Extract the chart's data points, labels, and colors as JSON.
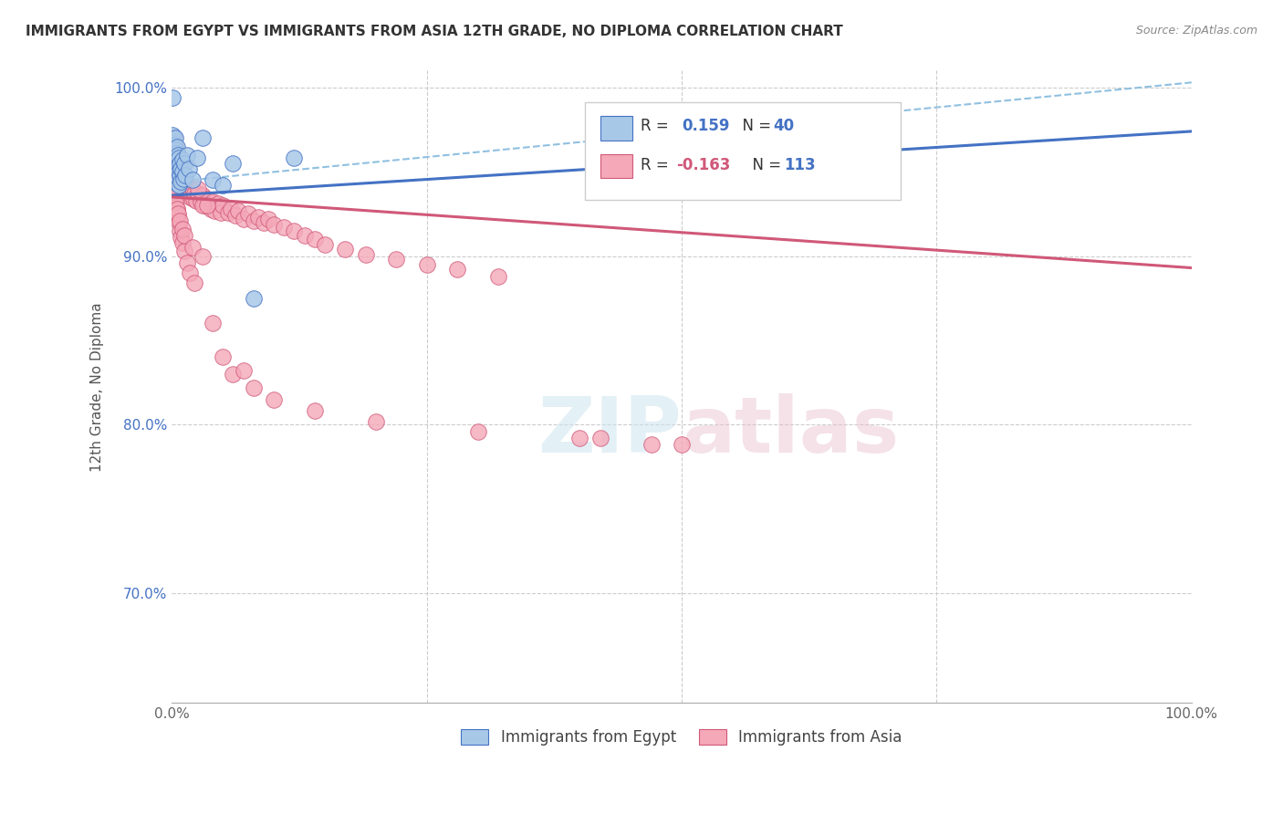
{
  "title": "IMMIGRANTS FROM EGYPT VS IMMIGRANTS FROM ASIA 12TH GRADE, NO DIPLOMA CORRELATION CHART",
  "source": "Source: ZipAtlas.com",
  "ylabel": "12th Grade, No Diploma",
  "legend_label1": "Immigrants from Egypt",
  "legend_label2": "Immigrants from Asia",
  "color_egypt": "#a8c8e8",
  "color_asia": "#f4a8b8",
  "color_trend_egypt": "#4472c4",
  "color_trend_asia": "#d05878",
  "color_dashed": "#90c0e0",
  "xlim": [
    0.0,
    1.0
  ],
  "ylim": [
    0.635,
    1.01
  ],
  "egypt_trend": [
    0.936,
    0.974
  ],
  "asia_trend": [
    0.935,
    0.893
  ],
  "dashed_line": [
    0.944,
    1.003
  ],
  "egypt_x": [
    0.001,
    0.001,
    0.002,
    0.002,
    0.002,
    0.003,
    0.003,
    0.003,
    0.003,
    0.004,
    0.004,
    0.004,
    0.005,
    0.005,
    0.005,
    0.006,
    0.006,
    0.006,
    0.007,
    0.007,
    0.007,
    0.008,
    0.008,
    0.009,
    0.009,
    0.01,
    0.01,
    0.011,
    0.012,
    0.013,
    0.015,
    0.017,
    0.02,
    0.025,
    0.03,
    0.04,
    0.05,
    0.06,
    0.08,
    0.12
  ],
  "egypt_y": [
    0.994,
    0.972,
    0.966,
    0.958,
    0.952,
    0.97,
    0.963,
    0.956,
    0.948,
    0.961,
    0.955,
    0.949,
    0.965,
    0.957,
    0.943,
    0.96,
    0.953,
    0.945,
    0.958,
    0.95,
    0.942,
    0.955,
    0.948,
    0.952,
    0.944,
    0.957,
    0.95,
    0.946,
    0.955,
    0.948,
    0.96,
    0.952,
    0.945,
    0.958,
    0.97,
    0.945,
    0.942,
    0.955,
    0.875,
    0.958
  ],
  "asia_x": [
    0.001,
    0.001,
    0.002,
    0.002,
    0.003,
    0.003,
    0.003,
    0.004,
    0.004,
    0.005,
    0.005,
    0.005,
    0.006,
    0.006,
    0.006,
    0.007,
    0.007,
    0.008,
    0.008,
    0.009,
    0.009,
    0.01,
    0.01,
    0.011,
    0.011,
    0.012,
    0.012,
    0.013,
    0.014,
    0.015,
    0.016,
    0.017,
    0.018,
    0.02,
    0.021,
    0.022,
    0.024,
    0.026,
    0.028,
    0.03,
    0.032,
    0.035,
    0.038,
    0.04,
    0.042,
    0.045,
    0.048,
    0.05,
    0.055,
    0.058,
    0.062,
    0.065,
    0.07,
    0.075,
    0.08,
    0.085,
    0.09,
    0.095,
    0.1,
    0.11,
    0.12,
    0.13,
    0.14,
    0.15,
    0.17,
    0.19,
    0.22,
    0.25,
    0.28,
    0.32,
    0.001,
    0.002,
    0.003,
    0.004,
    0.005,
    0.006,
    0.007,
    0.008,
    0.009,
    0.01,
    0.012,
    0.015,
    0.018,
    0.022,
    0.026,
    0.03,
    0.035,
    0.04,
    0.05,
    0.06,
    0.07,
    0.08,
    0.1,
    0.14,
    0.2,
    0.3,
    0.4,
    0.5,
    0.42,
    0.47,
    0.001,
    0.003,
    0.005,
    0.006,
    0.008,
    0.01,
    0.012,
    0.02,
    0.03
  ],
  "asia_y": [
    0.963,
    0.956,
    0.97,
    0.962,
    0.965,
    0.957,
    0.949,
    0.959,
    0.952,
    0.962,
    0.954,
    0.948,
    0.956,
    0.949,
    0.942,
    0.952,
    0.945,
    0.955,
    0.948,
    0.95,
    0.943,
    0.949,
    0.942,
    0.948,
    0.941,
    0.945,
    0.938,
    0.942,
    0.937,
    0.941,
    0.936,
    0.939,
    0.935,
    0.94,
    0.934,
    0.937,
    0.933,
    0.937,
    0.932,
    0.936,
    0.93,
    0.934,
    0.928,
    0.932,
    0.927,
    0.931,
    0.926,
    0.93,
    0.926,
    0.928,
    0.924,
    0.927,
    0.922,
    0.925,
    0.921,
    0.923,
    0.92,
    0.922,
    0.919,
    0.917,
    0.915,
    0.912,
    0.91,
    0.907,
    0.904,
    0.901,
    0.898,
    0.895,
    0.892,
    0.888,
    0.952,
    0.946,
    0.94,
    0.934,
    0.928,
    0.924,
    0.92,
    0.915,
    0.911,
    0.908,
    0.903,
    0.896,
    0.89,
    0.884,
    0.94,
    0.93,
    0.93,
    0.86,
    0.84,
    0.83,
    0.832,
    0.822,
    0.815,
    0.808,
    0.802,
    0.796,
    0.792,
    0.788,
    0.792,
    0.788,
    0.938,
    0.932,
    0.928,
    0.925,
    0.921,
    0.916,
    0.912,
    0.905,
    0.9
  ]
}
